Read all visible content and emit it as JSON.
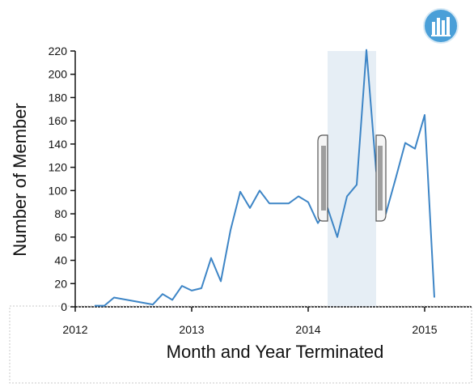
{
  "app": {
    "chart_tool_icon": "bar-chart-icon"
  },
  "colors": {
    "line": "#3d85c6",
    "brush": "#e6eef5",
    "brush_handle_fill": "#f5f5f5",
    "brush_handle_grip": "#9e9e9e",
    "axis": "#111111",
    "icon_bg": "#4a9fd8"
  },
  "brush": {
    "range": [
      "2014-03",
      "2014-08"
    ]
  },
  "chart_data": {
    "type": "line",
    "xlabel": "Month and Year Terminated",
    "ylabel": "Number of Member",
    "xlim": [
      "2012-01",
      "2015-06"
    ],
    "ylim": [
      0,
      220
    ],
    "x_ticks": [
      "2012",
      "2013",
      "2014",
      "2015"
    ],
    "y_ticks": [
      "0",
      "20",
      "40",
      "60",
      "80",
      "100",
      "120",
      "140",
      "160",
      "180",
      "200",
      "220"
    ],
    "grid": false,
    "series": [
      {
        "x": [
          "2012-03",
          "2012-04",
          "2012-05",
          "2012-09",
          "2012-10",
          "2012-11",
          "2012-12",
          "2013-01",
          "2013-02",
          "2013-03",
          "2013-04",
          "2013-05",
          "2013-06",
          "2013-07",
          "2013-08",
          "2013-09",
          "2013-10",
          "2013-11",
          "2013-12",
          "2014-01",
          "2014-02",
          "2014-03",
          "2014-04",
          "2014-05",
          "2014-06",
          "2014-07",
          "2014-08",
          "2014-09",
          "2014-10",
          "2014-11",
          "2014-12",
          "2015-01",
          "2015-02"
        ],
        "y": [
          1,
          1,
          8,
          2,
          11,
          6,
          18,
          14,
          16,
          42,
          22,
          66,
          99,
          85,
          100,
          89,
          89,
          89,
          95,
          90,
          72,
          85,
          60,
          95,
          105,
          221,
          117,
          80,
          110,
          141,
          136,
          165,
          8
        ]
      }
    ]
  }
}
